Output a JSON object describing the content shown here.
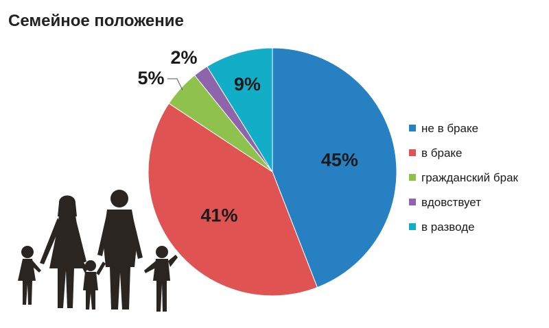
{
  "chart_data": {
    "type": "pie",
    "title": "Семейное положение",
    "start_angle_deg": 0,
    "direction": "clockwise",
    "slices": [
      {
        "label": "не в браке",
        "value": 45,
        "value_label": "45%",
        "color": "#2680c2"
      },
      {
        "label": "в браке",
        "value": 41,
        "value_label": "41%",
        "color": "#e05353"
      },
      {
        "label": "гражданский брак",
        "value": 5,
        "value_label": "5%",
        "color": "#8fc14d"
      },
      {
        "label": "вдовствует",
        "value": 2,
        "value_label": "2%",
        "color": "#8e65ab"
      },
      {
        "label": "в разводе",
        "value": 9,
        "value_label": "9%",
        "color": "#12aec8"
      }
    ],
    "legend": {
      "placement": "right"
    }
  },
  "illustration": {
    "icon": "family-silhouette-icon"
  }
}
